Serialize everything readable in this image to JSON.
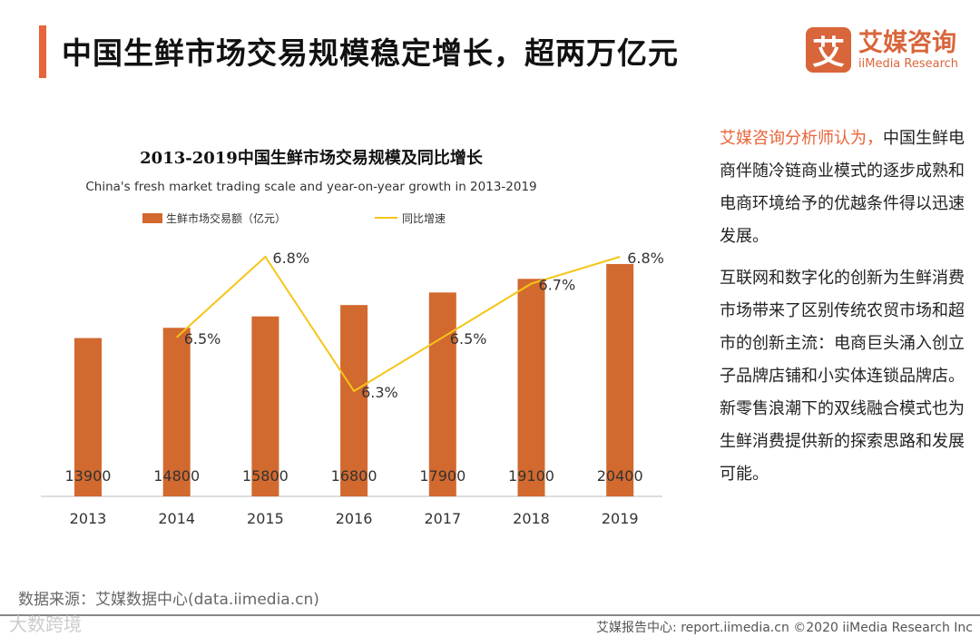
{
  "header": {
    "title": "中国生鲜市场交易规模稳定增长，超两万亿元"
  },
  "logo": {
    "mark": "艾",
    "cn": "艾媒咨询",
    "en": "iiMedia Research"
  },
  "chart_data": {
    "type": "bar",
    "title": "2013-2019中国生鲜市场交易规模及同比增长",
    "subtitle": "China's fresh market trading scale and year-on-year growth in 2013-2019",
    "categories": [
      "2013",
      "2014",
      "2015",
      "2016",
      "2017",
      "2018",
      "2019"
    ],
    "series": [
      {
        "name": "生鲜市场交易额（亿元）",
        "type": "bar",
        "color": "#d2692e",
        "values": [
          13900,
          14800,
          15800,
          16800,
          17900,
          19100,
          20400
        ],
        "labels": [
          "13900",
          "14800",
          "15800",
          "16800",
          "17900",
          "19100",
          "20400"
        ]
      },
      {
        "name": "同比增速",
        "type": "line",
        "color": "#f5c518",
        "values": [
          null,
          6.5,
          6.8,
          6.3,
          6.5,
          6.7,
          6.8
        ],
        "labels": [
          "",
          "6.5%",
          "6.8%",
          "6.3%",
          "6.5%",
          "6.7%",
          "6.8%"
        ]
      }
    ],
    "legend": "top"
  },
  "side": {
    "p1_highlight": "艾媒咨询分析师认为，",
    "p1": "中国生鲜电商伴随冷链商业模式的逐步成熟和电商环境给予的优越条件得以迅速发展。",
    "p2": "互联网和数字化的创新为生鲜消费市场带来了区别传统农贸市场和超市的创新主流：电商巨头涌入创立子品牌店铺和小实体连锁品牌店。新零售浪潮下的双线融合模式也为生鲜消费提供新的探索思路和发展可能。"
  },
  "footer": {
    "source": "数据来源：艾媒数据中心(data.iimedia.cn)",
    "watermark": "大数跨境",
    "copyright": "艾媒报告中心: report.iimedia.cn  ©2020  iiMedia Research Inc"
  }
}
